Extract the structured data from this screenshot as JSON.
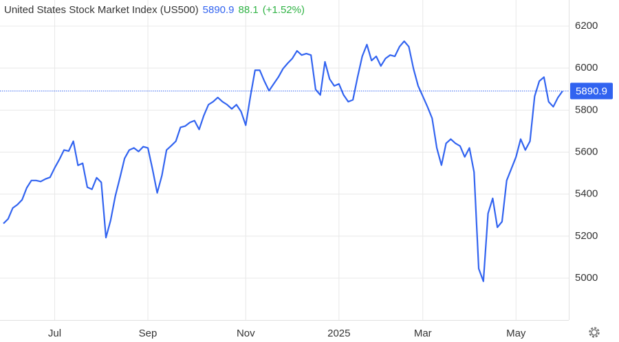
{
  "chart_data": {
    "type": "line",
    "title": "United States Stock Market Index (US500)",
    "annotations": [
      "88.1",
      "(+1.52%)"
    ],
    "categories": [
      null,
      null,
      null,
      null,
      null,
      null,
      null,
      null,
      null,
      null,
      null,
      "Jul",
      null,
      null,
      null,
      null,
      null,
      null,
      null,
      null,
      null,
      null,
      null,
      null,
      null,
      null,
      null,
      null,
      null,
      null,
      null,
      "Sep",
      null,
      null,
      null,
      null,
      null,
      null,
      null,
      null,
      null,
      null,
      null,
      null,
      null,
      null,
      null,
      null,
      null,
      null,
      null,
      null,
      "Nov",
      null,
      null,
      null,
      null,
      null,
      null,
      null,
      null,
      null,
      null,
      null,
      null,
      null,
      null,
      null,
      null,
      null,
      null,
      null,
      "2025",
      null,
      null,
      null,
      null,
      null,
      null,
      null,
      null,
      null,
      null,
      null,
      null,
      null,
      null,
      null,
      null,
      null,
      "Mar",
      null,
      null,
      null,
      null,
      null,
      null,
      null,
      null,
      null,
      null,
      null,
      null,
      null,
      null,
      null,
      null,
      null,
      null,
      null,
      "May",
      null,
      null,
      null,
      null,
      null,
      null,
      null,
      null,
      null,
      null
    ],
    "series": [
      {
        "name": "US500",
        "color": "#3163f0",
        "values": [
          5260,
          5282,
          5334,
          5350,
          5373,
          5430,
          5465,
          5465,
          5460,
          5472,
          5480,
          5525,
          5565,
          5610,
          5605,
          5652,
          5537,
          5547,
          5433,
          5423,
          5478,
          5456,
          5193,
          5275,
          5390,
          5478,
          5570,
          5610,
          5620,
          5603,
          5626,
          5620,
          5518,
          5406,
          5488,
          5610,
          5630,
          5652,
          5718,
          5724,
          5741,
          5750,
          5708,
          5774,
          5826,
          5840,
          5860,
          5840,
          5826,
          5806,
          5826,
          5793,
          5728,
          5865,
          5990,
          5990,
          5938,
          5892,
          5925,
          5957,
          5997,
          6023,
          6046,
          6082,
          6062,
          6069,
          6062,
          5898,
          5872,
          6030,
          5948,
          5915,
          5925,
          5872,
          5840,
          5849,
          5957,
          6056,
          6112,
          6036,
          6056,
          6010,
          6046,
          6062,
          6056,
          6102,
          6128,
          6102,
          5997,
          5915,
          5866,
          5816,
          5761,
          5620,
          5538,
          5642,
          5662,
          5642,
          5629,
          5577,
          5620,
          5505,
          5045,
          4985,
          5308,
          5380,
          5242,
          5269,
          5465,
          5521,
          5577,
          5662,
          5610,
          5652,
          5866,
          5938,
          5957,
          5840,
          5816,
          5860,
          5890.9
        ]
      }
    ],
    "ylim": [
      4800,
      6300
    ],
    "yticks": [
      5000,
      5200,
      5400,
      5600,
      5800,
      6000,
      6200
    ],
    "grid": true,
    "change_color": "#2fb344"
  }
}
